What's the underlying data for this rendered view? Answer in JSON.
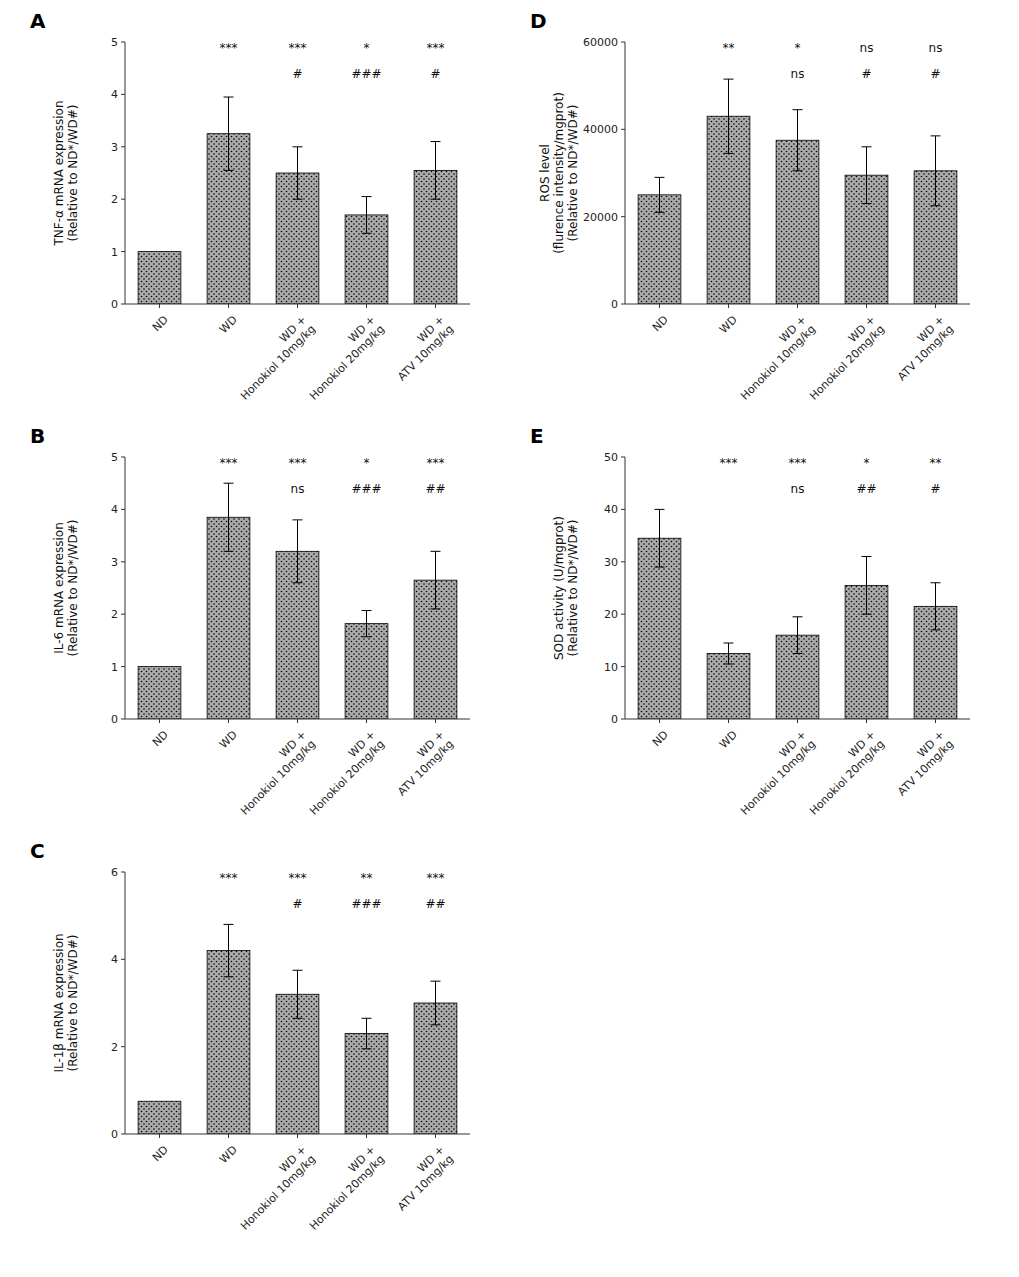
{
  "chart_data": [
    {
      "type": "bar",
      "title": "A",
      "ylabel": "TNF-α mRNA expression\n(Relative to ND*/WD#)",
      "categories": [
        "ND",
        "WD",
        "WD +\nHonokiol 10mg/kg",
        "WD +\nHonokiol 20mg/kg",
        "WD +\nATV 10mg/kg"
      ],
      "values": [
        1.0,
        3.25,
        2.5,
        1.7,
        2.55
      ],
      "errors": [
        0.0,
        0.7,
        0.5,
        0.35,
        0.55
      ],
      "star_labels": [
        null,
        "***",
        "***",
        "*",
        "***"
      ],
      "hash_labels": [
        null,
        null,
        "#",
        "###",
        "#"
      ],
      "color": "#aaaaaa",
      "ylim": [
        0,
        5
      ],
      "yticks": [
        0,
        1,
        2,
        3,
        4,
        5
      ],
      "grid": false
    },
    {
      "type": "bar",
      "title": "D",
      "ylabel": "ROS level\n(flurence intensity/mgprot)\n(Relative to ND*/WD#)",
      "categories": [
        "ND",
        "WD",
        "WD +\nHonokiol 10mg/kg",
        "WD +\nHonokiol 20mg/kg",
        "WD +\nATV 10mg/kg"
      ],
      "values": [
        25000,
        43000,
        37500,
        29500,
        30500
      ],
      "errors": [
        4000,
        8500,
        7000,
        6500,
        8000
      ],
      "star_labels": [
        null,
        "**",
        "*",
        "ns",
        "ns"
      ],
      "hash_labels": [
        null,
        null,
        "ns",
        "#",
        "#"
      ],
      "color": "#aaaaaa",
      "ylim": [
        0,
        60000
      ],
      "yticks": [
        0,
        20000,
        40000,
        60000
      ],
      "grid": false
    },
    {
      "type": "bar",
      "title": "B",
      "ylabel": "IL-6 mRNA expression\n(Relative to ND*/WD#)",
      "categories": [
        "ND",
        "WD",
        "WD +\nHonokiol 10mg/kg",
        "WD +\nHonokiol 20mg/kg",
        "WD +\nATV 10mg/kg"
      ],
      "values": [
        1.0,
        3.85,
        3.2,
        1.82,
        2.65
      ],
      "errors": [
        0.0,
        0.65,
        0.6,
        0.25,
        0.55
      ],
      "star_labels": [
        null,
        "***",
        "***",
        "*",
        "***"
      ],
      "hash_labels": [
        null,
        null,
        "ns",
        "###",
        "##"
      ],
      "color": "#aaaaaa",
      "ylim": [
        0,
        5
      ],
      "yticks": [
        0,
        1,
        2,
        3,
        4,
        5
      ],
      "grid": false
    },
    {
      "type": "bar",
      "title": "E",
      "ylabel": "SOD activity (U/mgprot)\n(Relative to ND*/WD#)",
      "categories": [
        "ND",
        "WD",
        "WD +\nHonokiol 10mg/kg",
        "WD +\nHonokiol 20mg/kg",
        "WD +\nATV 10mg/kg"
      ],
      "values": [
        34.5,
        12.5,
        16.0,
        25.5,
        21.5
      ],
      "errors": [
        5.5,
        2.0,
        3.5,
        5.5,
        4.5
      ],
      "star_labels": [
        null,
        "***",
        "***",
        "*",
        "**"
      ],
      "hash_labels": [
        null,
        null,
        "ns",
        "##",
        "#"
      ],
      "color": "#aaaaaa",
      "ylim": [
        0,
        50
      ],
      "yticks": [
        0,
        10,
        20,
        30,
        40,
        50
      ],
      "grid": false
    },
    {
      "type": "bar",
      "title": "C",
      "ylabel": "IL-1β mRNA expression\n(Relative to ND*/WD#)",
      "categories": [
        "ND",
        "WD",
        "WD +\nHonokiol 10mg/kg",
        "WD +\nHonokiol 20mg/kg",
        "WD +\nATV 10mg/kg"
      ],
      "values": [
        0.75,
        4.2,
        3.2,
        2.3,
        3.0
      ],
      "errors": [
        0.0,
        0.6,
        0.55,
        0.35,
        0.5
      ],
      "star_labels": [
        null,
        "***",
        "***",
        "**",
        "***"
      ],
      "hash_labels": [
        null,
        null,
        "#",
        "###",
        "##"
      ],
      "color": "#aaaaaa",
      "ylim": [
        0,
        6
      ],
      "yticks": [
        0,
        2,
        4,
        6
      ],
      "grid": false
    }
  ]
}
